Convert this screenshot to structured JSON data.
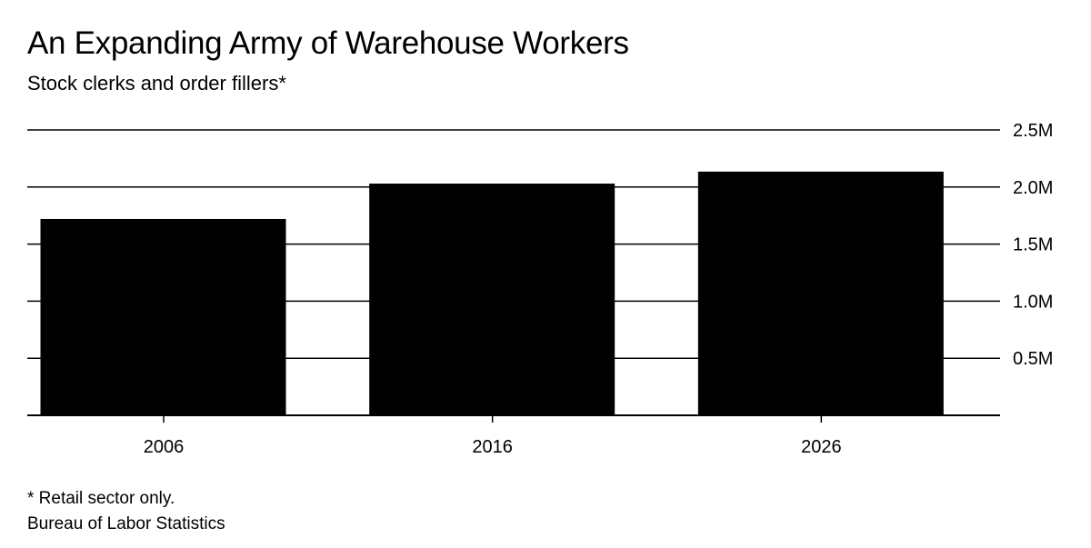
{
  "header": {
    "title": "An Expanding Army of Warehouse Workers",
    "subtitle": "Stock clerks and order fillers*"
  },
  "footer": {
    "note": "* Retail sector only.",
    "source": "Bureau of Labor Statistics"
  },
  "chart_data": {
    "type": "bar",
    "title": "An Expanding Army of Warehouse Workers",
    "subtitle": "Stock clerks and order fillers*",
    "categories": [
      "2006",
      "2016",
      "2026"
    ],
    "values": [
      1720000,
      2030000,
      2135000
    ],
    "ylim": [
      0,
      2500000
    ],
    "yticks": [
      500000,
      1000000,
      1500000,
      2000000,
      2500000
    ],
    "ytick_labels": [
      "0.5M",
      "1.0M",
      "1.5M",
      "2.0M",
      "2.5M"
    ],
    "y_axis_side": "right",
    "grid": true,
    "bar_color": "#000000",
    "gridline_color": "#000000"
  }
}
